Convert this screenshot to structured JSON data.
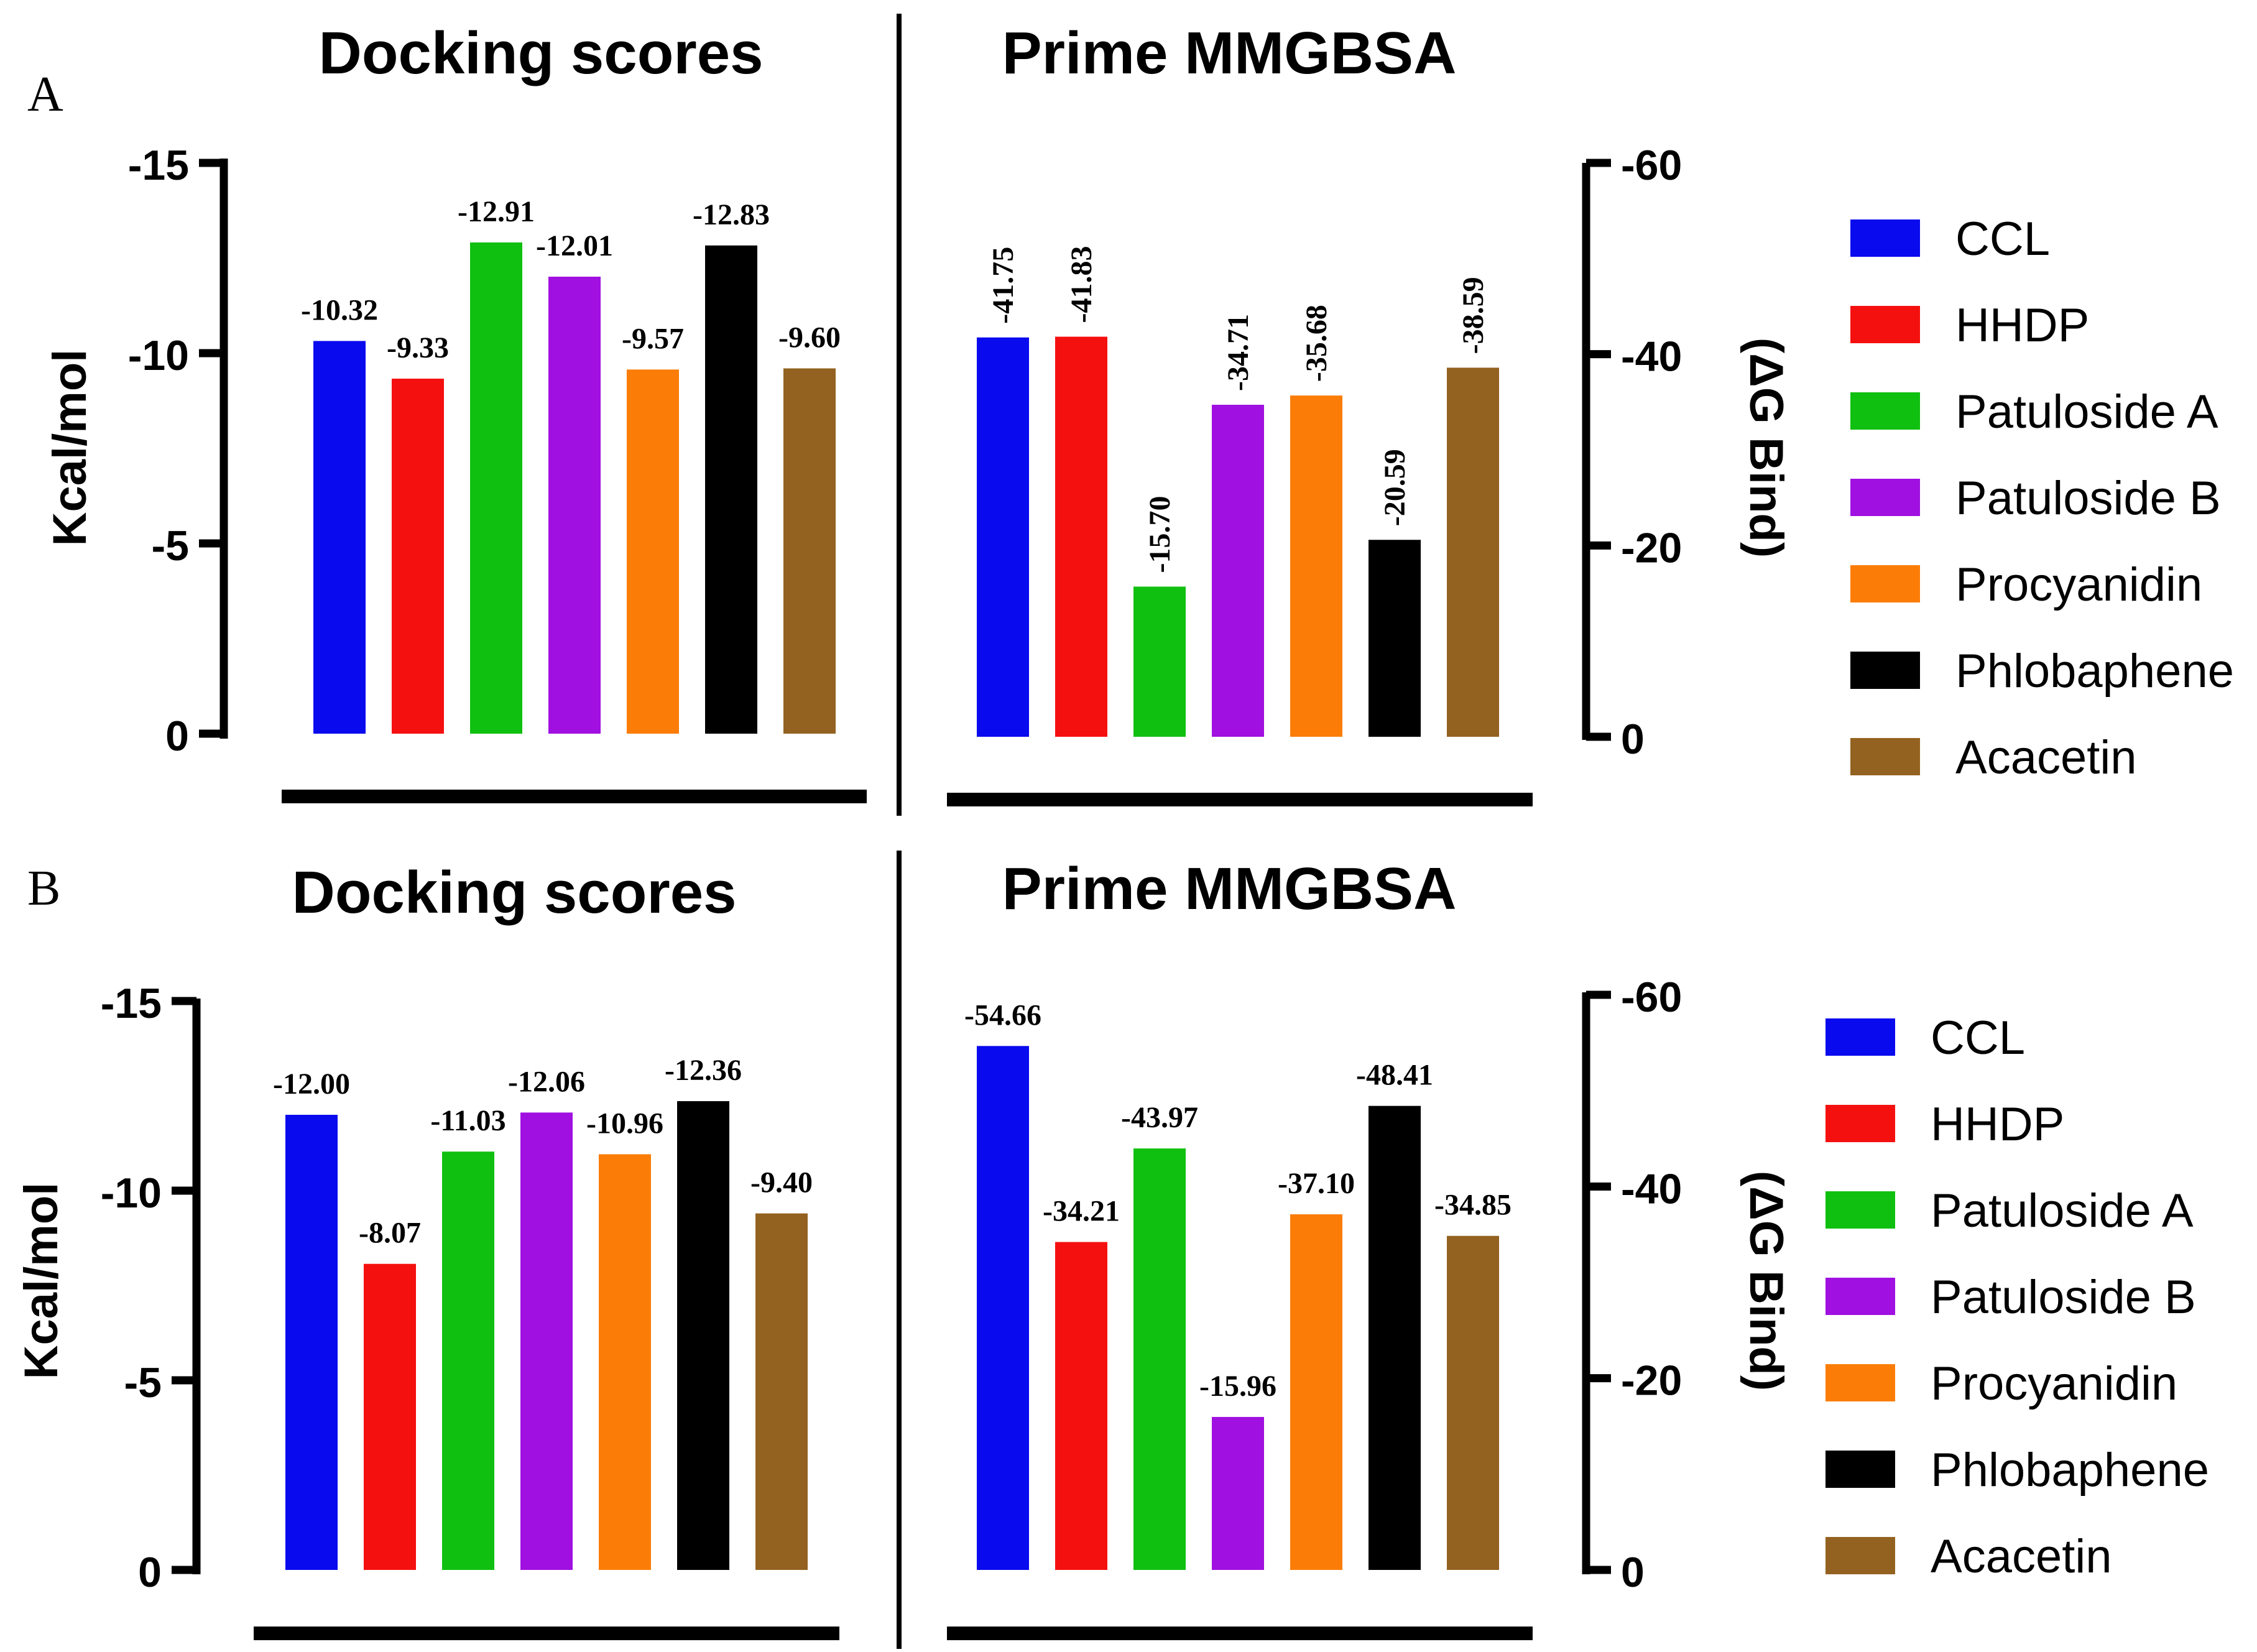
{
  "panels": [
    {
      "letter": "A",
      "docking": {
        "title": "Docking scores",
        "ylabel": "Kcal/mol",
        "ylim": [
          0,
          -15
        ],
        "ticks": [
          "-15",
          "-10",
          "-5",
          "0"
        ],
        "tick_values": [
          -15,
          -10,
          -5,
          0
        ],
        "value_labels": [
          "-10.32",
          "-9.33",
          "-12.91",
          "-12.01",
          "-9.57",
          "-12.83",
          "-9.60"
        ]
      },
      "mmgbsa": {
        "title": "Prime MMGBSA",
        "ylabel": "(ΔG Bind)",
        "ylim": [
          0,
          -60
        ],
        "ticks": [
          "-60",
          "-40",
          "-20",
          "0"
        ],
        "tick_values": [
          -60,
          -40,
          -20,
          0
        ],
        "value_labels": [
          "-41.75",
          "-41.83",
          "-15.70",
          "-34.71",
          "-35.68",
          "-20.59",
          "-38.59"
        ]
      },
      "legend_items": [
        "CCL",
        "HHDP",
        "Patuloside A",
        "Patuloside B",
        "Procyanidin",
        "Phlobaphene",
        "Acacetin"
      ]
    },
    {
      "letter": "B",
      "docking": {
        "title": "Docking scores",
        "ylabel": "Kcal/mol",
        "ylim": [
          0,
          -15
        ],
        "ticks": [
          "-15",
          "-10",
          "-5",
          "0"
        ],
        "tick_values": [
          -15,
          -10,
          -5,
          0
        ],
        "value_labels": [
          "-12.00",
          "-8.07",
          "-11.03",
          "-12.06",
          "-10.96",
          "-12.36",
          "-9.40"
        ]
      },
      "mmgbsa": {
        "title": "Prime MMGBSA",
        "ylabel": "(ΔG Bind)",
        "ylim": [
          0,
          -60
        ],
        "ticks": [
          "-60",
          "-40",
          "-20",
          "0"
        ],
        "tick_values": [
          -60,
          -40,
          -20,
          0
        ],
        "value_labels": [
          "-54.66",
          "-34.21",
          "-43.97",
          "-15.96",
          "-37.10",
          "-48.41",
          "-34.85"
        ]
      },
      "legend_items": [
        "CCL",
        "HHDP",
        "Patuloside A",
        "Patuloside B",
        "Procyanidin",
        "Phlobaphene",
        "Acacetin"
      ]
    }
  ],
  "series_colors": [
    "#0a0aee",
    "#f51010",
    "#10c010",
    "#a010e0",
    "#fb7d08",
    "#000000",
    "#936220"
  ],
  "chart_data": [
    {
      "type": "bar",
      "panel": "A",
      "title": "Docking scores",
      "ylabel": "Kcal/mol",
      "ylim": [
        0,
        -15
      ],
      "categories": [
        "CCL",
        "HHDP",
        "Patuloside A",
        "Patuloside B",
        "Procyanidin",
        "Phlobaphene",
        "Acacetin"
      ],
      "values": [
        -10.32,
        -9.33,
        -12.91,
        -12.01,
        -9.57,
        -12.83,
        -9.6
      ]
    },
    {
      "type": "bar",
      "panel": "A",
      "title": "Prime MMGBSA",
      "ylabel": "(ΔG Bind)",
      "ylim": [
        0,
        -60
      ],
      "categories": [
        "CCL",
        "HHDP",
        "Patuloside A",
        "Patuloside B",
        "Procyanidin",
        "Phlobaphene",
        "Acacetin"
      ],
      "values": [
        -41.75,
        -41.83,
        -15.7,
        -34.71,
        -35.68,
        -20.59,
        -38.59
      ]
    },
    {
      "type": "bar",
      "panel": "B",
      "title": "Docking scores",
      "ylabel": "Kcal/mol",
      "ylim": [
        0,
        -15
      ],
      "categories": [
        "CCL",
        "HHDP",
        "Patuloside A",
        "Patuloside B",
        "Procyanidin",
        "Phlobaphene",
        "Acacetin"
      ],
      "values": [
        -12.0,
        -8.07,
        -11.03,
        -12.06,
        -10.96,
        -12.36,
        -9.4
      ]
    },
    {
      "type": "bar",
      "panel": "B",
      "title": "Prime MMGBSA",
      "ylabel": "(ΔG Bind)",
      "ylim": [
        0,
        -60
      ],
      "categories": [
        "CCL",
        "HHDP",
        "Patuloside A",
        "Patuloside B",
        "Procyanidin",
        "Phlobaphene",
        "Acacetin"
      ],
      "values": [
        -54.66,
        -34.21,
        -43.97,
        -15.96,
        -37.1,
        -48.41,
        -34.85
      ]
    }
  ]
}
